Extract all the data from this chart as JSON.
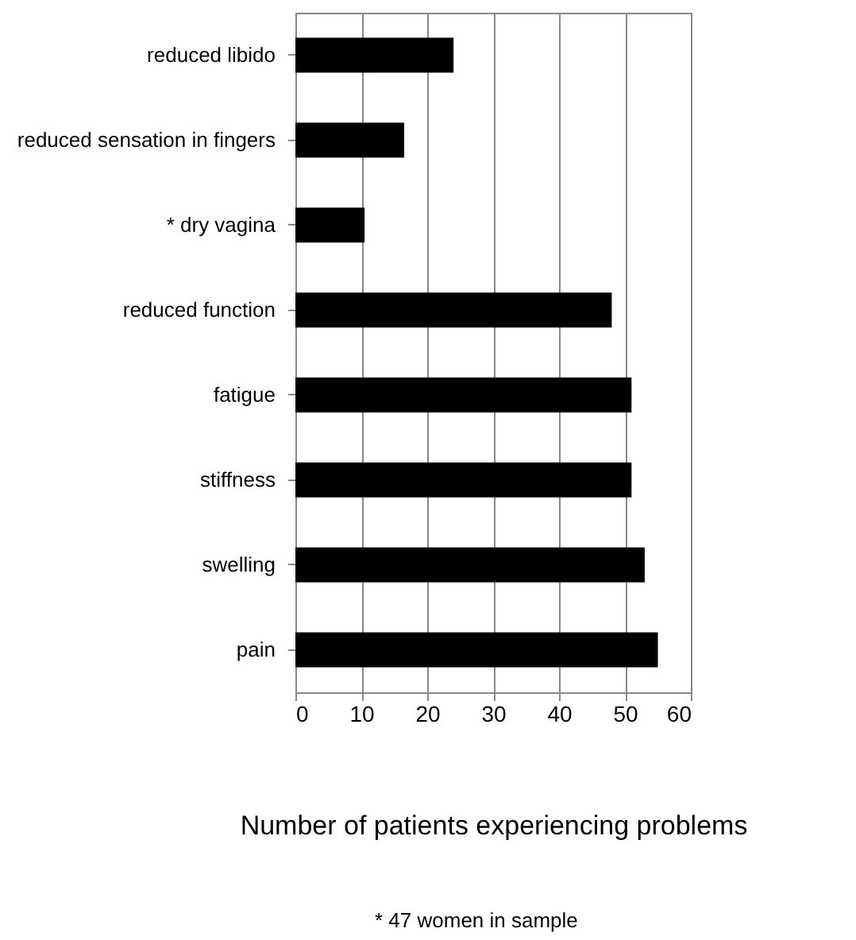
{
  "chart_data": {
    "type": "bar",
    "orientation": "horizontal",
    "categories": [
      "reduced libido",
      "reduced sensation in fingers",
      "* dry vagina",
      "reduced function",
      "fatigue",
      "stiffness",
      "swelling",
      "pain"
    ],
    "values": [
      24,
      16.5,
      10.5,
      48,
      51,
      51,
      53,
      55
    ],
    "color": "#000000",
    "xlim": [
      0,
      60
    ],
    "xticks": [
      0,
      10,
      20,
      30,
      40,
      50,
      60
    ],
    "grid": "x",
    "xlabel": "Number of patients experiencing problems",
    "annotations": [
      "* 47 women in sample"
    ]
  }
}
